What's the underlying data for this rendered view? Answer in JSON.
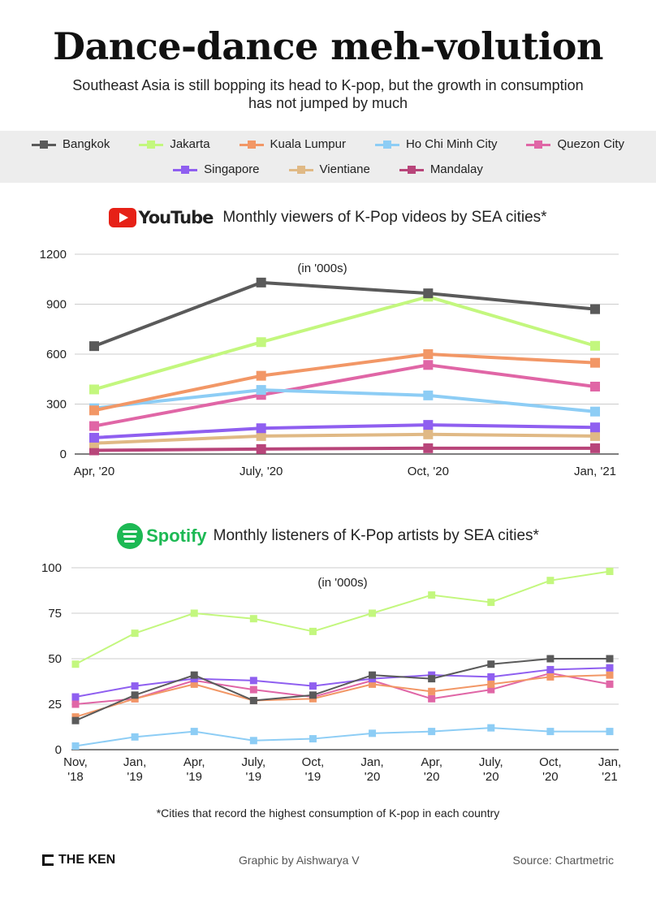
{
  "header": {
    "title": "Dance-dance meh-volution",
    "subtitle": "Southeast Asia is still bopping its head to K-pop, but the growth in consumption has not jumped by much"
  },
  "legend": {
    "row1": [
      {
        "name": "Bangkok",
        "color": "#5a5a5a"
      },
      {
        "name": "Jakarta",
        "color": "#c3f77e"
      },
      {
        "name": "Kuala Lumpur",
        "color": "#f29766"
      },
      {
        "name": "Ho Chi Minh City",
        "color": "#8dcdf5"
      },
      {
        "name": "Quezon City",
        "color": "#e066a6"
      }
    ],
    "row2": [
      {
        "name": "Singapore",
        "color": "#8f5ff0"
      },
      {
        "name": "Vientiane",
        "color": "#e0b985"
      },
      {
        "name": "Mandalay",
        "color": "#b8457a"
      }
    ]
  },
  "youtube_header": {
    "logo_text": "YouTube",
    "label": "Monthly viewers of K-Pop videos by SEA cities*"
  },
  "spotify_header": {
    "logo_text": "Spotify",
    "label": "Monthly listeners of K-Pop artists by SEA cities*"
  },
  "chart_data": [
    {
      "type": "line",
      "title": "Monthly viewers of K-Pop videos by SEA cities*",
      "unit_note": "(in '000s)",
      "categories": [
        "Apr, '20",
        "July, '20",
        "Oct, '20",
        "Jan, '21"
      ],
      "yticks": [
        0,
        300,
        600,
        900,
        1200
      ],
      "ylim": [
        0,
        1200
      ],
      "grid": true,
      "series": [
        {
          "name": "Bangkok",
          "color": "#5a5a5a",
          "values": [
            648,
            1030,
            965,
            870
          ]
        },
        {
          "name": "Jakarta",
          "color": "#c3f77e",
          "values": [
            388,
            672,
            945,
            650
          ]
        },
        {
          "name": "Kuala Lumpur",
          "color": "#f29766",
          "values": [
            262,
            470,
            600,
            548
          ]
        },
        {
          "name": "Ho Chi Minh City",
          "color": "#8dcdf5",
          "values": [
            275,
            385,
            352,
            255
          ]
        },
        {
          "name": "Quezon City",
          "color": "#e066a6",
          "values": [
            168,
            355,
            535,
            405
          ]
        },
        {
          "name": "Singapore",
          "color": "#8f5ff0",
          "values": [
            98,
            155,
            175,
            160
          ]
        },
        {
          "name": "Vientiane",
          "color": "#e0b985",
          "values": [
            65,
            108,
            118,
            108
          ]
        },
        {
          "name": "Mandalay",
          "color": "#b8457a",
          "values": [
            22,
            30,
            35,
            35
          ]
        }
      ]
    },
    {
      "type": "line",
      "title": "Monthly listeners of K-Pop artists by SEA cities*",
      "unit_note": "(in '000s)",
      "categories": [
        "Nov, '18",
        "Jan, '19",
        "Apr, '19",
        "July, '19",
        "Oct, '19",
        "Jan, '20",
        "Apr, '20",
        "July, '20",
        "Oct, '20",
        "Jan, '21"
      ],
      "xticks": [
        {
          "l1": "Nov,",
          "l2": "'18"
        },
        {
          "l1": "Jan,",
          "l2": "'19"
        },
        {
          "l1": "Apr,",
          "l2": "'19"
        },
        {
          "l1": "July,",
          "l2": "'19"
        },
        {
          "l1": "Oct,",
          "l2": "'19"
        },
        {
          "l1": "Jan,",
          "l2": "'20"
        },
        {
          "l1": "Apr,",
          "l2": "'20"
        },
        {
          "l1": "July,",
          "l2": "'20"
        },
        {
          "l1": "Oct,",
          "l2": "'20"
        },
        {
          "l1": "Jan,",
          "l2": "'21"
        }
      ],
      "yticks": [
        0,
        25,
        50,
        75,
        100
      ],
      "ylim": [
        0,
        100
      ],
      "grid": true,
      "series": [
        {
          "name": "Jakarta",
          "color": "#c3f77e",
          "values": [
            47,
            64,
            75,
            72,
            65,
            75,
            85,
            81,
            93,
            98
          ]
        },
        {
          "name": "Bangkok",
          "color": "#5a5a5a",
          "values": [
            16,
            30,
            41,
            27,
            30,
            41,
            39,
            47,
            50,
            50
          ]
        },
        {
          "name": "Singapore",
          "color": "#8f5ff0",
          "values": [
            29,
            35,
            39,
            38,
            35,
            39,
            41,
            40,
            44,
            45
          ]
        },
        {
          "name": "Kuala Lumpur",
          "color": "#f29766",
          "values": [
            18,
            28,
            36,
            27,
            28,
            36,
            32,
            36,
            40,
            41
          ]
        },
        {
          "name": "Quezon City",
          "color": "#e066a6",
          "values": [
            25,
            28,
            38,
            33,
            29,
            38,
            28,
            33,
            42,
            36
          ]
        },
        {
          "name": "Ho Chi Minh City",
          "color": "#8dcdf5",
          "values": [
            2,
            7,
            10,
            5,
            6,
            9,
            10,
            12,
            10,
            10
          ]
        }
      ]
    }
  ],
  "footnote": "*Cities that record the highest consumption of K-pop in each country",
  "footer": {
    "brand": "THE KEN",
    "credit": "Graphic by Aishwarya V",
    "source": "Source: Chartmetric"
  }
}
